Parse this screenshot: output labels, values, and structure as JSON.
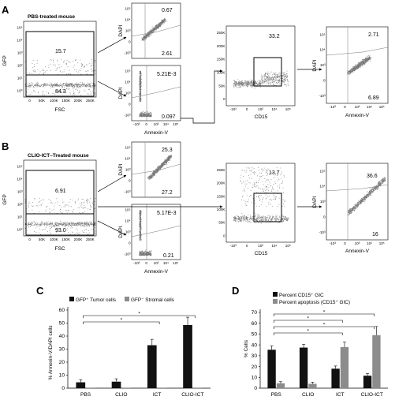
{
  "colors": {
    "dark": "#111111",
    "gray": "#8c8c8c",
    "axis": "#000000",
    "dots": "#555555"
  },
  "flow": {
    "row_a": {
      "panel_label": "A",
      "title": "PBS-treated mouse",
      "main": {
        "gate_top": "15.7",
        "gate_bottom": "84.3",
        "xlabel": "FSC",
        "ylabel": "GFP",
        "xticks": [
          "0",
          "50K",
          "100K",
          "150K",
          "200K",
          "250K"
        ],
        "yticks": [
          "10⁰",
          "10¹",
          "10²",
          "10³",
          "10⁴",
          "10⁵"
        ]
      },
      "top_small": {
        "upper": "0.67",
        "lower": "2.61",
        "ylabel": "DAPI"
      },
      "bot_small": {
        "upper": "5.21E-3",
        "lower": "0.097",
        "ylabel": "DAPI",
        "xlabel": "Annexin-V"
      },
      "cd15": {
        "value": "33.2",
        "xlabel": "CD15",
        "yticks": [
          "0",
          "50K",
          "100K",
          "150K",
          "200K",
          "250K"
        ],
        "xticks": [
          "-10³",
          "0",
          "10³",
          "10⁴",
          "10⁵"
        ]
      },
      "final": {
        "upper": "2.71",
        "lower": "6.89",
        "ylabel": "DAPI",
        "xlabel": "Annexin-V"
      }
    },
    "row_b": {
      "panel_label": "B",
      "title": "CLIO-ICT–Treated mouse",
      "main": {
        "gate_top": "6.91",
        "gate_bottom": "93.0",
        "xlabel": "FSC",
        "ylabel": "GFP",
        "xticks": [
          "0",
          "50K",
          "100K",
          "150K",
          "200K",
          "250K"
        ],
        "yticks": [
          "10⁰",
          "10¹",
          "10²",
          "10³",
          "10⁴",
          "10⁵"
        ]
      },
      "top_small": {
        "upper": "25.3",
        "lower": "27.2",
        "ylabel": "DAPI"
      },
      "bot_small": {
        "upper": "5.17E-3",
        "lower": "0.21",
        "ylabel": "DAPI",
        "xlabel": "Annexin-V"
      },
      "cd15": {
        "value": "13.7",
        "xlabel": "CD15",
        "yticks": [
          "0",
          "50K",
          "100K",
          "150K",
          "200K",
          "250K"
        ],
        "xticks": [
          "-10³",
          "0",
          "10³",
          "10⁴",
          "10⁵"
        ]
      },
      "final": {
        "upper": "36.6",
        "lower": "16",
        "ylabel": "DAPI",
        "xlabel": "Annexin-V"
      }
    },
    "small_xticks": [
      "-10³",
      "0",
      "10³",
      "10⁴",
      "10⁵"
    ],
    "small_yticks": [
      "-10³",
      "0",
      "10³",
      "10⁴",
      "10⁵"
    ]
  },
  "chart_data": [
    {
      "panel_label": "C",
      "type": "bar",
      "categories": [
        "PBS",
        "CLIO",
        "ICT",
        "CLIO-ICT"
      ],
      "series": [
        {
          "name": "GFP⁺ Tumor cells",
          "values": [
            4.5,
            5.0,
            33.0,
            48.5
          ],
          "errors": [
            2.0,
            2.2,
            4.5,
            6.0
          ],
          "color": "#111111"
        },
        {
          "name": "GFP⁻ Stromal cells",
          "values": [
            0.4,
            0.4,
            0.4,
            0.4
          ],
          "errors": [
            0,
            0,
            0,
            0
          ],
          "color": "#8c8c8c"
        }
      ],
      "ylabel": "% Annexin-V/DAPI cells",
      "ylim": [
        0,
        60
      ],
      "yticks": [
        "0",
        "10",
        "20",
        "30",
        "40",
        "50",
        "60"
      ],
      "significance": [
        "*",
        "*"
      ],
      "legend_position": "top"
    },
    {
      "panel_label": "D",
      "type": "bar",
      "categories": [
        "PBS",
        "CLIO",
        "ICT",
        "CLIO-ICT"
      ],
      "series": [
        {
          "name": "Percent CD15⁺ GIC",
          "values": [
            35.5,
            37.5,
            18.0,
            11.5
          ],
          "errors": [
            3.5,
            3.0,
            2.5,
            2.0
          ],
          "color": "#111111"
        },
        {
          "name": "Percent apoptosis (CD15⁺ GIC)",
          "values": [
            4.5,
            4.0,
            38.0,
            49.0
          ],
          "errors": [
            1.5,
            1.5,
            4.5,
            8.0
          ],
          "color": "#8c8c8c"
        }
      ],
      "ylabel": "% Cells",
      "ylim": [
        0,
        70
      ],
      "yticks": [
        "0",
        "10",
        "20",
        "30",
        "40",
        "50",
        "60",
        "70"
      ],
      "significance": [
        "*",
        "*",
        "*",
        "*"
      ],
      "legend_position": "top-left"
    }
  ]
}
